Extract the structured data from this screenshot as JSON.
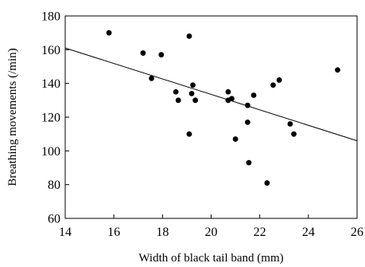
{
  "chart_data": {
    "type": "scatter",
    "xlabel": "Width of black tail band (mm)",
    "ylabel": "Breathing movements (/min)",
    "xlim": [
      14,
      26
    ],
    "ylim": [
      60,
      180
    ],
    "xticks": [
      14,
      16,
      18,
      20,
      22,
      24,
      26
    ],
    "yticks": [
      60,
      80,
      100,
      120,
      140,
      160,
      180
    ],
    "grid": false,
    "legend": "none",
    "points": [
      {
        "x": 15.8,
        "y": 170
      },
      {
        "x": 17.2,
        "y": 158
      },
      {
        "x": 17.55,
        "y": 143
      },
      {
        "x": 17.95,
        "y": 157
      },
      {
        "x": 18.55,
        "y": 135
      },
      {
        "x": 18.65,
        "y": 130
      },
      {
        "x": 19.1,
        "y": 168
      },
      {
        "x": 19.1,
        "y": 110
      },
      {
        "x": 19.2,
        "y": 134
      },
      {
        "x": 19.25,
        "y": 139
      },
      {
        "x": 19.35,
        "y": 130
      },
      {
        "x": 20.7,
        "y": 135
      },
      {
        "x": 20.7,
        "y": 130
      },
      {
        "x": 20.85,
        "y": 131
      },
      {
        "x": 21.0,
        "y": 107
      },
      {
        "x": 21.5,
        "y": 127
      },
      {
        "x": 21.5,
        "y": 117
      },
      {
        "x": 21.55,
        "y": 93
      },
      {
        "x": 21.75,
        "y": 133
      },
      {
        "x": 22.3,
        "y": 81
      },
      {
        "x": 22.55,
        "y": 139
      },
      {
        "x": 22.8,
        "y": 142
      },
      {
        "x": 23.25,
        "y": 116
      },
      {
        "x": 23.4,
        "y": 110
      },
      {
        "x": 25.2,
        "y": 148
      }
    ],
    "trendline": {
      "x": [
        14,
        26
      ],
      "y": [
        161,
        106
      ]
    },
    "colors": {
      "points": "#000000",
      "line": "#000000",
      "axes": "#000000"
    }
  }
}
